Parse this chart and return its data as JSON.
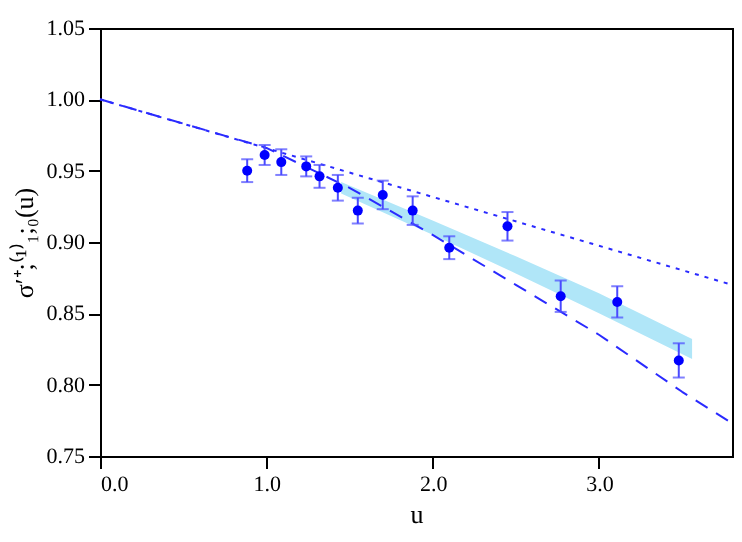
{
  "chart_data": {
    "type": "scatter",
    "xlabel": "u",
    "ylabel": "σ′⁺;⁽¹⁾₁;₀(u)",
    "xlim": [
      0,
      3.8
    ],
    "ylim": [
      0.75,
      1.05
    ],
    "xticks": [
      {
        "value": 0,
        "label": "0.0"
      },
      {
        "value": 1,
        "label": "1.0"
      },
      {
        "value": 2,
        "label": "2.0"
      },
      {
        "value": 3,
        "label": "3.0"
      }
    ],
    "yticks": [
      {
        "value": 0.75,
        "label": "0.75"
      },
      {
        "value": 0.8,
        "label": "0.80"
      },
      {
        "value": 0.85,
        "label": "0.85"
      },
      {
        "value": 0.9,
        "label": "0.90"
      },
      {
        "value": 0.95,
        "label": "0.95"
      },
      {
        "value": 1.0,
        "label": "1.00"
      },
      {
        "value": 1.05,
        "label": "1.05"
      }
    ],
    "series": [
      {
        "type": "line",
        "color": "#b0e6f8",
        "x": [
          1.45,
          2.0,
          2.5,
          3.0,
          3.56
        ],
        "values": [
          null,
          null,
          null,
          null,
          null
        ],
        "lower": [
          0.934,
          0.905,
          0.878,
          0.85,
          0.818
        ],
        "upper": [
          0.942,
          0.915,
          0.89,
          0.864,
          0.832
        ]
      },
      {
        "type": "line",
        "line_style": "dotted",
        "color": "#2a2aff",
        "x": [
          0,
          3.8
        ],
        "values": [
          1.0,
          0.87
        ]
      },
      {
        "type": "line",
        "line_style": "dashed",
        "color": "#2a2aff",
        "x": [
          0,
          1.0,
          1.5,
          2.0,
          2.5,
          3.0,
          3.5,
          3.8
        ],
        "values": [
          1.0,
          0.966,
          0.938,
          0.905,
          0.87,
          0.835,
          0.795,
          0.773
        ]
      },
      {
        "marker": "circle",
        "color": "#0000ff",
        "x": [
          0.885,
          0.99,
          1.09,
          1.24,
          1.32,
          1.43,
          1.55,
          1.7,
          1.88,
          2.1,
          2.45,
          2.77,
          3.11,
          3.48
        ],
        "values": [
          0.95,
          0.961,
          0.956,
          0.953,
          0.946,
          0.938,
          0.922,
          0.933,
          0.922,
          0.896,
          0.911,
          0.862,
          0.858,
          0.817
        ],
        "errors": [
          0.008,
          0.007,
          0.009,
          0.007,
          0.008,
          0.009,
          0.009,
          0.01,
          0.01,
          0.008,
          0.01,
          0.011,
          0.011,
          0.012
        ]
      }
    ]
  }
}
